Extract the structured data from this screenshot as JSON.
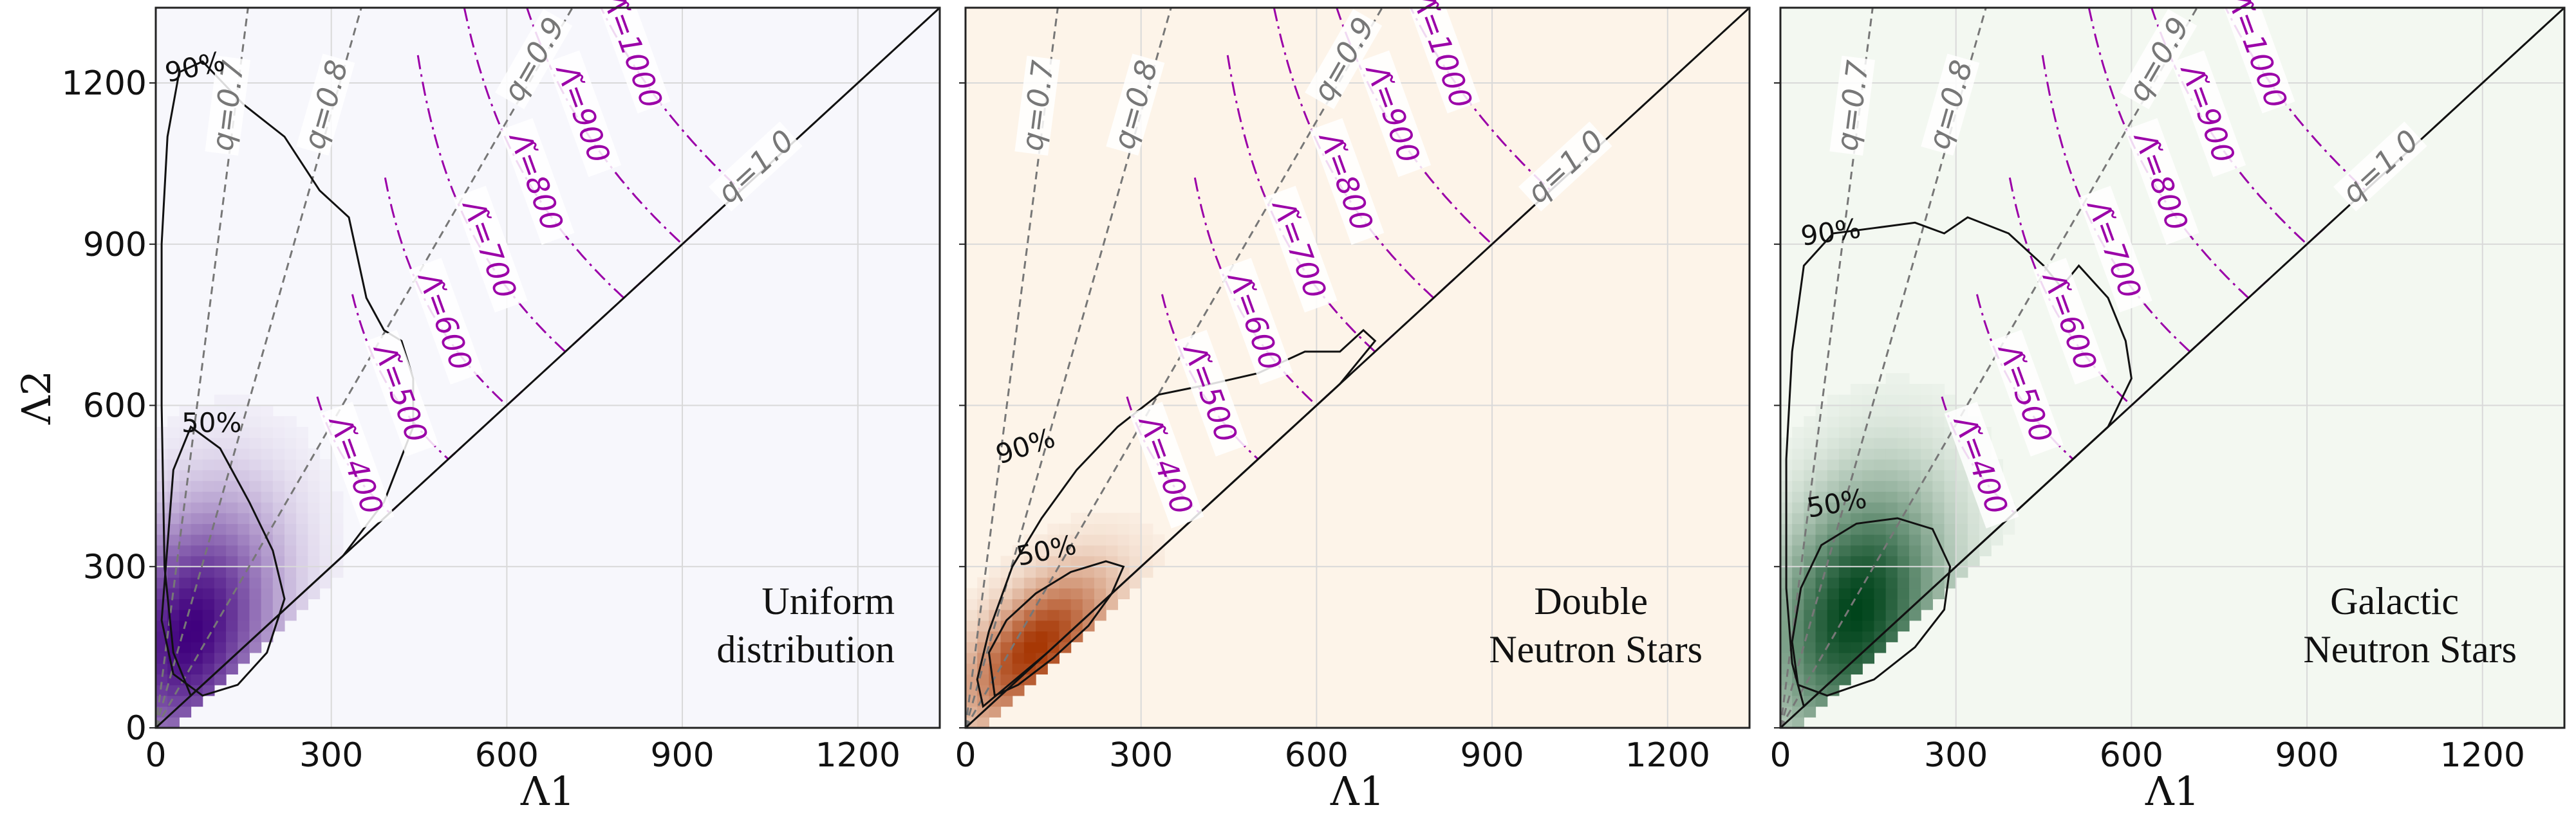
{
  "chart_data": [
    {
      "type": "heatmap",
      "title": "",
      "xlabel": "Λ1",
      "ylabel": "Λ2",
      "xlim": [
        0,
        1340
      ],
      "ylim": [
        0,
        1340
      ],
      "xticks": [
        0,
        300,
        600,
        900,
        1200
      ],
      "yticks": [
        0,
        300,
        600,
        900,
        1200
      ],
      "annotation": [
        "Uniform",
        "distribution"
      ],
      "colormap": "purple",
      "density_peak": [
        60,
        180
      ],
      "contours": {
        "levels": [
          "50%",
          "90%"
        ]
      },
      "q_lines": [
        0.7,
        0.8,
        0.9,
        1.0
      ],
      "lambda_tilde_lines": [
        400,
        500,
        600,
        700,
        800,
        900,
        1000
      ]
    },
    {
      "type": "heatmap",
      "title": "",
      "xlabel": "Λ1",
      "ylabel": "",
      "xlim": [
        0,
        1340
      ],
      "ylim": [
        0,
        1340
      ],
      "xticks": [
        0,
        300,
        600,
        900,
        1200
      ],
      "yticks": [],
      "annotation": [
        "Double",
        "Neutron Stars"
      ],
      "colormap": "orange",
      "density_peak": [
        120,
        150
      ],
      "contours": {
        "levels": [
          "50%",
          "90%"
        ]
      },
      "q_lines": [
        0.7,
        0.8,
        0.9,
        1.0
      ],
      "lambda_tilde_lines": [
        400,
        500,
        600,
        700,
        800,
        900,
        1000
      ]
    },
    {
      "type": "heatmap",
      "title": "",
      "xlabel": "Λ1",
      "ylabel": "",
      "xlim": [
        0,
        1340
      ],
      "ylim": [
        0,
        1340
      ],
      "xticks": [
        0,
        300,
        600,
        900,
        1200
      ],
      "yticks": [],
      "annotation": [
        "Galactic",
        "Neutron Stars"
      ],
      "colormap": "green",
      "density_peak": [
        130,
        220
      ],
      "contours": {
        "levels": [
          "50%",
          "90%"
        ]
      },
      "q_lines": [
        0.7,
        0.8,
        0.9,
        1.0
      ],
      "lambda_tilde_lines": [
        400,
        500,
        600,
        700,
        800,
        900,
        1000
      ]
    }
  ],
  "label_text": {
    "q_prefix": "q=",
    "lambda_prefix": "Λ̃="
  },
  "colors": {
    "purple_bg": "#f7f7fc",
    "purple_peak": "#3f007d",
    "orange_bg": "#fdf4e9",
    "orange_peak": "#a63603",
    "green_bg": "#f3f8f1",
    "green_peak": "#00441b",
    "lambda_line": "#9b00a8",
    "q_line": "#777777",
    "grid": "#d9d9d9"
  }
}
